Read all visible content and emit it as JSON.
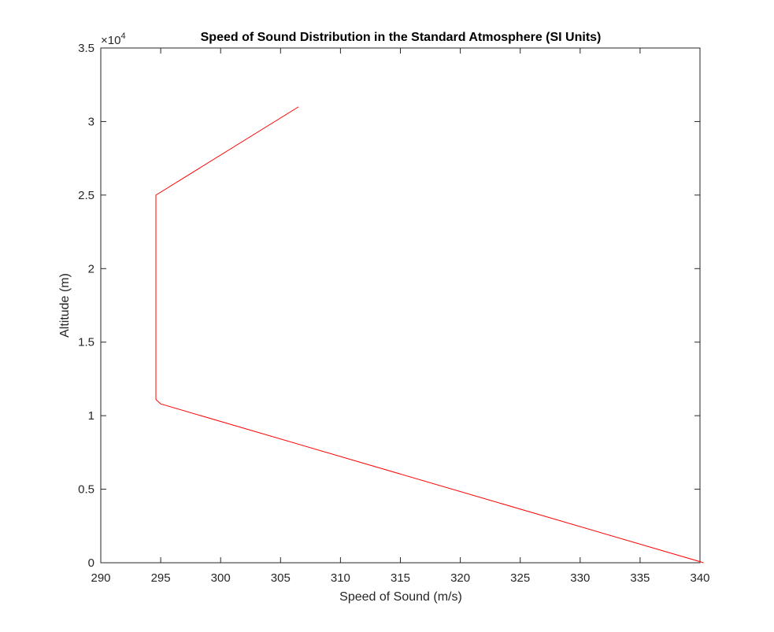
{
  "chart_data": {
    "type": "line",
    "title": "Speed of Sound Distribution in the Standard Atmosphere (SI Units)",
    "xlabel": "Speed of Sound (m/s)",
    "ylabel": "Altitude (m)",
    "xlim": [
      290,
      340
    ],
    "ylim": [
      0,
      35000
    ],
    "x_ticks": [
      "290",
      "295",
      "300",
      "305",
      "310",
      "315",
      "320",
      "325",
      "330",
      "335",
      "340"
    ],
    "y_ticks": [
      "0",
      "0.5",
      "1",
      "1.5",
      "2",
      "2.5",
      "3",
      "3.5"
    ],
    "y_multiplier": {
      "base": "×10",
      "exponent": "4"
    },
    "grid": false,
    "series": [
      {
        "color": "#ff0000",
        "x": [
          340.3,
          295.0,
          294.6,
          294.6,
          295.0,
          306.5
        ],
        "y": [
          0,
          10800,
          11100,
          25000,
          25200,
          31000
        ]
      }
    ]
  }
}
